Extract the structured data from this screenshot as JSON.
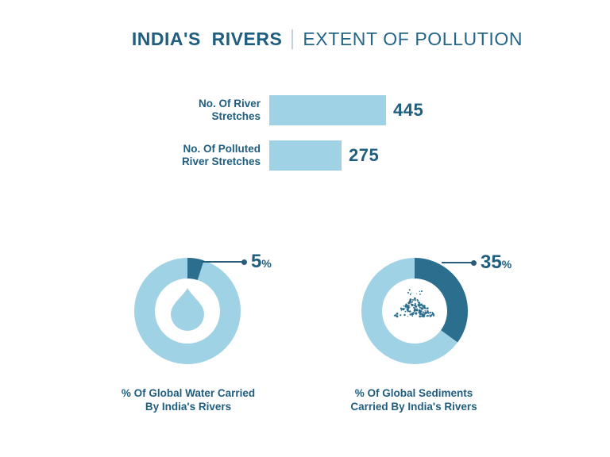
{
  "header": {
    "title_primary": "INDIA'S RIVERS",
    "title_secondary": "EXTENT OF POLLUTION"
  },
  "colors": {
    "text": "#1F5E7F",
    "light_blue": "#9FD2E4",
    "dark_blue": "#2B6E8E",
    "callout_line": "#2A5D7C",
    "title_divider": "#C6CFD6",
    "background": "#FFFFFF"
  },
  "chart_data": [
    {
      "type": "bar",
      "orientation": "horizontal",
      "categories": [
        "No. Of River Stretches",
        "No. Of Polluted River Stretches"
      ],
      "values": [
        445,
        275
      ],
      "xlim": [
        0,
        445
      ],
      "bar_color": "#9FD2E4",
      "grid": false,
      "rows": [
        {
          "label_line1": "No. Of River",
          "label_line2": "Stretches",
          "value": 445,
          "value_label": "445"
        },
        {
          "label_line1": "No. Of Polluted",
          "label_line2": "River Stretches",
          "value": 275,
          "value_label": "275"
        }
      ]
    },
    {
      "type": "pie",
      "variant": "donut",
      "values": [
        5,
        95
      ],
      "highlight_pct": 5,
      "callout_value": "5",
      "callout_unit": "%",
      "icon": "water-drop-icon",
      "caption_line1": "% Of Global Water Carried",
      "caption_line2": "By India's Rivers",
      "colors": {
        "highlight": "#2B6E8E",
        "base": "#9FD2E4"
      },
      "legend": false
    },
    {
      "type": "pie",
      "variant": "donut",
      "values": [
        35,
        65
      ],
      "highlight_pct": 35,
      "callout_value": "35",
      "callout_unit": "%",
      "icon": "sediment-pile-icon",
      "caption_line1": "% Of Global Sediments",
      "caption_line2": "Carried By India's Rivers",
      "colors": {
        "highlight": "#2B6E8E",
        "base": "#9FD2E4"
      },
      "legend": false
    }
  ]
}
